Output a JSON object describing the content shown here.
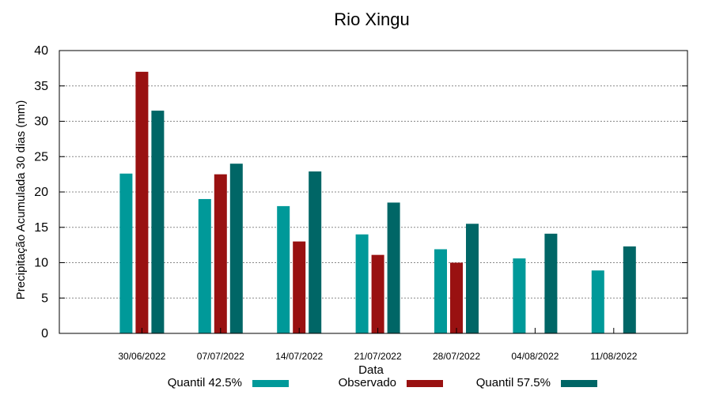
{
  "chart_data": {
    "type": "bar",
    "title": "Rio Xingu",
    "xlabel": "Data",
    "ylabel": "Precipitação Acumulada 30 dias (mm)",
    "ylim": [
      0,
      40
    ],
    "yticks": [
      0,
      5,
      10,
      15,
      20,
      25,
      30,
      35,
      40
    ],
    "grid": true,
    "legend_position": "bottom",
    "categories": [
      "30/06/2022",
      "07/07/2022",
      "14/07/2022",
      "21/07/2022",
      "28/07/2022",
      "04/08/2022",
      "11/08/2022"
    ],
    "series": [
      {
        "name": "Quantil 42.5%",
        "color": "#009999",
        "values": [
          22.6,
          19.0,
          18.0,
          14.0,
          11.9,
          10.6,
          8.9
        ]
      },
      {
        "name": "Observado",
        "color": "#991111",
        "values": [
          37.0,
          22.5,
          13.0,
          11.1,
          10.0,
          null,
          null
        ]
      },
      {
        "name": "Quantil 57.5%",
        "color": "#006666",
        "values": [
          31.5,
          24.0,
          22.9,
          18.5,
          15.5,
          14.1,
          12.3
        ]
      }
    ]
  }
}
